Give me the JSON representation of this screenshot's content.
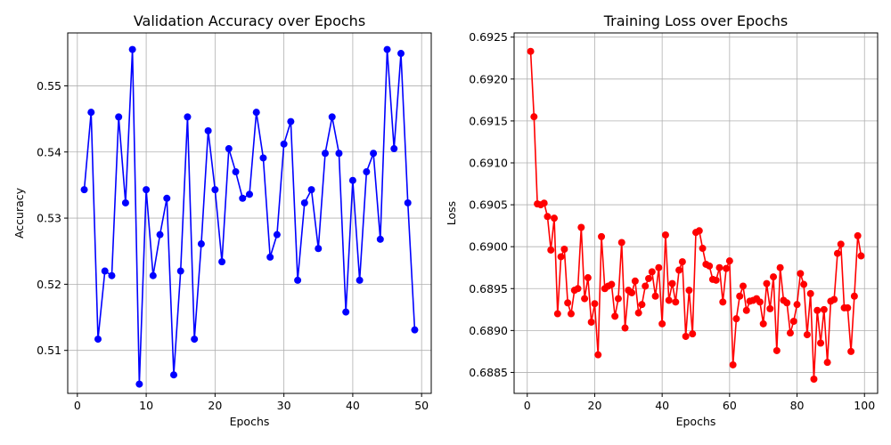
{
  "chart_data": [
    {
      "type": "line",
      "title": "Validation Accuracy over Epochs",
      "xlabel": "Epochs",
      "ylabel": "Accuracy",
      "xlim": [
        -1.4,
        51.4
      ],
      "ylim": [
        0.5035,
        0.558
      ],
      "xticks": [
        0,
        10,
        20,
        30,
        40,
        50
      ],
      "yticks": [
        0.51,
        0.52,
        0.53,
        0.54,
        0.55
      ],
      "grid": true,
      "color": "#0000ff",
      "series": [
        {
          "x": [
            1,
            2,
            3,
            4,
            5,
            6,
            7,
            8,
            9,
            10,
            11,
            12,
            13,
            14,
            15,
            16,
            17,
            18,
            19,
            20,
            21,
            22,
            23,
            24,
            25,
            26,
            27,
            28,
            29,
            30,
            31,
            32,
            33,
            34,
            35,
            36,
            37,
            38,
            39,
            40,
            41,
            42,
            43,
            44,
            45,
            46,
            47,
            48,
            49
          ],
          "values": [
            0.5343,
            0.546,
            0.5117,
            0.522,
            0.5213,
            0.5453,
            0.5323,
            0.5555,
            0.5049,
            0.5343,
            0.5213,
            0.5275,
            0.533,
            0.5063,
            0.522,
            0.5453,
            0.5117,
            0.5261,
            0.5432,
            0.5343,
            0.5234,
            0.5405,
            0.537,
            0.533,
            0.5336,
            0.546,
            0.5391,
            0.5241,
            0.5275,
            0.5412,
            0.5446,
            0.5206,
            0.5323,
            0.5343,
            0.5254,
            0.5398,
            0.5453,
            0.5398,
            0.5158,
            0.5357,
            0.5206,
            0.537,
            0.5398,
            0.5268,
            0.5555,
            0.5405,
            0.5549,
            0.5323,
            0.5131
          ]
        }
      ]
    },
    {
      "type": "line",
      "title": "Training Loss over Epochs",
      "xlabel": "Epochs",
      "ylabel": "Loss",
      "xlim": [
        -3.9,
        103.9
      ],
      "ylim": [
        0.68825,
        0.69255
      ],
      "xticks": [
        0,
        20,
        40,
        60,
        80,
        100
      ],
      "yticks": [
        0.6885,
        0.689,
        0.6895,
        0.69,
        0.6905,
        0.691,
        0.6915,
        0.692,
        0.6925
      ],
      "ytick_labels": [
        "0.6885",
        "0.6890",
        "0.6895",
        "0.6900",
        "0.6905",
        "0.6910",
        "0.6915",
        "0.6920",
        "0.6925"
      ],
      "grid": true,
      "color": "#ff0000",
      "series": [
        {
          "x": [
            1,
            2,
            3,
            4,
            5,
            6,
            7,
            8,
            9,
            10,
            11,
            12,
            13,
            14,
            15,
            16,
            17,
            18,
            19,
            20,
            21,
            22,
            23,
            24,
            25,
            26,
            27,
            28,
            29,
            30,
            31,
            32,
            33,
            34,
            35,
            36,
            37,
            38,
            39,
            40,
            41,
            42,
            43,
            44,
            45,
            46,
            47,
            48,
            49,
            50,
            51,
            52,
            53,
            54,
            55,
            56,
            57,
            58,
            59,
            60,
            61,
            62,
            63,
            64,
            65,
            66,
            67,
            68,
            69,
            70,
            71,
            72,
            73,
            74,
            75,
            76,
            77,
            78,
            79,
            80,
            81,
            82,
            83,
            84,
            85,
            86,
            87,
            88,
            89,
            90,
            91,
            92,
            93,
            94,
            95,
            96,
            97,
            98,
            99
          ],
          "values": [
            0.69233,
            0.69155,
            0.69051,
            0.6905,
            0.69052,
            0.69036,
            0.68996,
            0.69034,
            0.6892,
            0.68988,
            0.68997,
            0.68933,
            0.6892,
            0.68948,
            0.6895,
            0.69023,
            0.68938,
            0.68963,
            0.6891,
            0.68932,
            0.68871,
            0.69012,
            0.6895,
            0.68953,
            0.68955,
            0.68917,
            0.68938,
            0.69005,
            0.68903,
            0.68948,
            0.68945,
            0.68959,
            0.68921,
            0.68931,
            0.68953,
            0.68962,
            0.6897,
            0.68941,
            0.68975,
            0.68908,
            0.69014,
            0.68936,
            0.68956,
            0.68934,
            0.68972,
            0.68982,
            0.68893,
            0.68948,
            0.68896,
            0.69017,
            0.69019,
            0.68998,
            0.68979,
            0.68977,
            0.68961,
            0.6896,
            0.68975,
            0.68934,
            0.68974,
            0.68983,
            0.68859,
            0.68914,
            0.68941,
            0.68953,
            0.68924,
            0.68935,
            0.68936,
            0.68938,
            0.68934,
            0.68908,
            0.68956,
            0.68926,
            0.68964,
            0.68876,
            0.68975,
            0.68936,
            0.68933,
            0.68897,
            0.68911,
            0.68931,
            0.68968,
            0.68955,
            0.68895,
            0.68944,
            0.68842,
            0.68924,
            0.68885,
            0.68925,
            0.68862,
            0.68935,
            0.68937,
            0.68992,
            0.69003,
            0.68927,
            0.68927,
            0.68875,
            0.68941,
            0.69013,
            0.68989
          ]
        }
      ]
    }
  ]
}
